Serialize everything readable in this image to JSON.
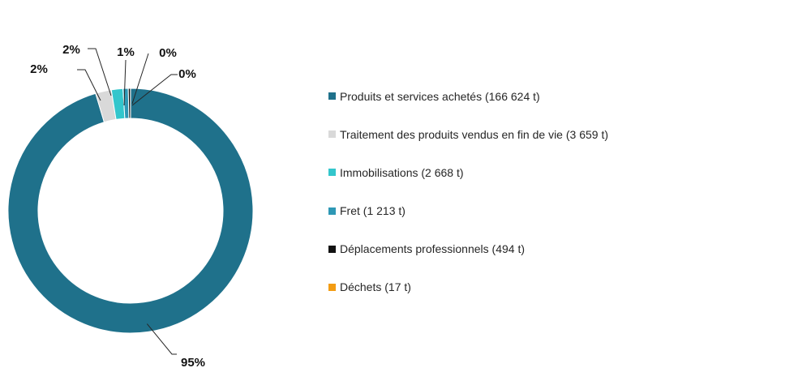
{
  "chart_data": {
    "type": "pie",
    "donut": true,
    "legend_position": "right",
    "categories": [
      "Produits et services achetés (166 624 t)",
      "Traitement des produits vendus en fin de vie (3 659 t)",
      "Immobilisations (2 668 t)",
      "Fret (1 213 t)",
      "Déplacements professionnels (494 t)",
      "Déchets (17 t)"
    ],
    "values": [
      166624,
      3659,
      2668,
      1213,
      494,
      17
    ],
    "data_labels": [
      "95%",
      "2%",
      "2%",
      "1%",
      "0%",
      "0%"
    ],
    "colors": [
      "#1F718B",
      "#D9D9D9",
      "#33C6CC",
      "#2E98B5",
      "#111111",
      "#F39C12"
    ]
  }
}
